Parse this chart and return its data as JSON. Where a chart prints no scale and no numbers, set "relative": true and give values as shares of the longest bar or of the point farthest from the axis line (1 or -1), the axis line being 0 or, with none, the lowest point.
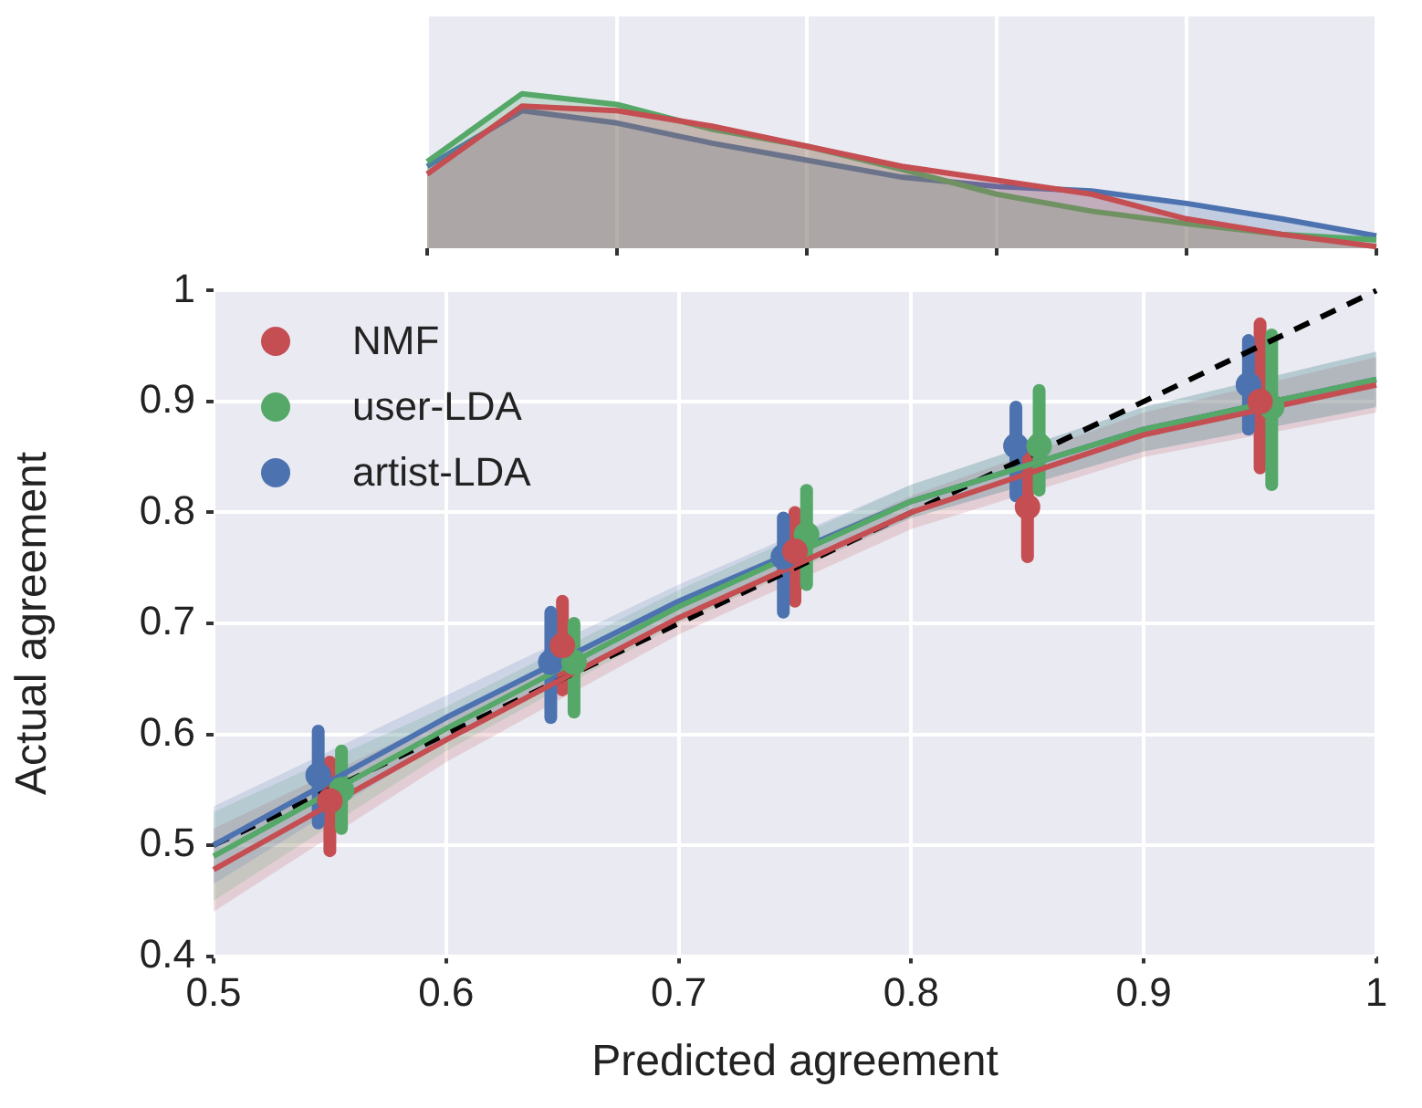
{
  "chart_data": [
    {
      "type": "area",
      "relative": true,
      "categories": [
        null,
        null,
        null,
        null,
        null,
        null,
        null,
        null,
        null,
        null,
        null
      ],
      "grid": "x",
      "series": [
        {
          "color": "#c44e52",
          "values": [
            0.48,
            0.92,
            0.89,
            0.79,
            0.66,
            0.53,
            0.44,
            0.35,
            0.19,
            0.09,
            0.01
          ]
        },
        {
          "color": "#55a868",
          "values": [
            0.56,
            1.0,
            0.93,
            0.77,
            0.66,
            0.51,
            0.35,
            0.24,
            0.16,
            0.09,
            0.055
          ]
        },
        {
          "color": "#4c72b0",
          "values": [
            0.53,
            0.89,
            0.81,
            0.68,
            0.57,
            0.46,
            0.4,
            0.37,
            0.29,
            0.19,
            0.08
          ]
        }
      ]
    },
    {
      "type": "scatter",
      "xlabel": "Predicted agreement",
      "ylabel": "Actual agreement",
      "xlim": [
        0.5,
        1.0
      ],
      "xticks": [
        0.5,
        0.6,
        0.7,
        0.8,
        0.9,
        1.0
      ],
      "ylim": [
        0.4,
        1.0
      ],
      "yticks": [
        0.4,
        0.5,
        0.6,
        0.7,
        0.8,
        0.9,
        1.0
      ],
      "grid": true,
      "legend": "top left",
      "marker": "circle",
      "series": [
        {
          "name": "NMF",
          "color": "#c44e52",
          "x": [
            0.55,
            0.65,
            0.75,
            0.85,
            0.95
          ],
          "values": [
            0.54,
            0.68,
            0.765,
            0.805,
            0.9
          ],
          "errors": [
            [
              0.495,
              0.575
            ],
            [
              0.64,
              0.72
            ],
            [
              0.72,
              0.8
            ],
            [
              0.76,
              0.85
            ],
            [
              0.84,
              0.97
            ]
          ]
        },
        {
          "name": "user-LDA",
          "color": "#55a868",
          "x": [
            0.555,
            0.655,
            0.755,
            0.855,
            0.955
          ],
          "values": [
            0.55,
            0.665,
            0.78,
            0.86,
            0.895
          ],
          "errors": [
            [
              0.515,
              0.585
            ],
            [
              0.62,
              0.7
            ],
            [
              0.735,
              0.82
            ],
            [
              0.82,
              0.91
            ],
            [
              0.825,
              0.96
            ]
          ]
        },
        {
          "name": "artist-LDA",
          "color": "#4c72b0",
          "x": [
            0.545,
            0.645,
            0.745,
            0.845,
            0.945
          ],
          "values": [
            0.563,
            0.665,
            0.76,
            0.86,
            0.915
          ],
          "errors": [
            [
              0.52,
              0.603
            ],
            [
              0.615,
              0.71
            ],
            [
              0.71,
              0.795
            ],
            [
              0.815,
              0.895
            ],
            [
              0.875,
              0.955
            ]
          ]
        },
        {
          "type": "line",
          "marker": "none",
          "color": "#c44e52",
          "x": [
            0.5,
            0.6,
            0.7,
            0.8,
            0.9,
            1.0
          ],
          "values": [
            0.478,
            0.595,
            0.705,
            0.8,
            0.87,
            0.915
          ],
          "lower": [
            0.44,
            0.575,
            0.69,
            0.785,
            0.85,
            0.89
          ],
          "upper": [
            0.515,
            0.615,
            0.72,
            0.815,
            0.89,
            0.94
          ]
        },
        {
          "type": "line",
          "marker": "none",
          "color": "#55a868",
          "x": [
            0.5,
            0.6,
            0.7,
            0.8,
            0.9,
            1.0
          ],
          "values": [
            0.49,
            0.605,
            0.715,
            0.81,
            0.875,
            0.92
          ],
          "lower": [
            0.45,
            0.585,
            0.7,
            0.795,
            0.855,
            0.895
          ],
          "upper": [
            0.53,
            0.625,
            0.73,
            0.825,
            0.895,
            0.945
          ]
        },
        {
          "type": "line",
          "marker": "none",
          "color": "#4c72b0",
          "x": [
            0.5,
            0.6,
            0.7,
            0.8,
            0.9,
            1.0
          ],
          "values": [
            0.5,
            0.615,
            0.72,
            0.81,
            0.875,
            0.92
          ],
          "lower": [
            0.465,
            0.595,
            0.705,
            0.795,
            0.855,
            0.895
          ],
          "upper": [
            0.535,
            0.635,
            0.735,
            0.825,
            0.895,
            0.945
          ]
        },
        {
          "type": "line",
          "marker": "none",
          "line_style": "dashed",
          "color": "#000000",
          "x": [
            0.5,
            1.0
          ],
          "values": [
            0.5,
            1.0
          ]
        }
      ]
    }
  ]
}
